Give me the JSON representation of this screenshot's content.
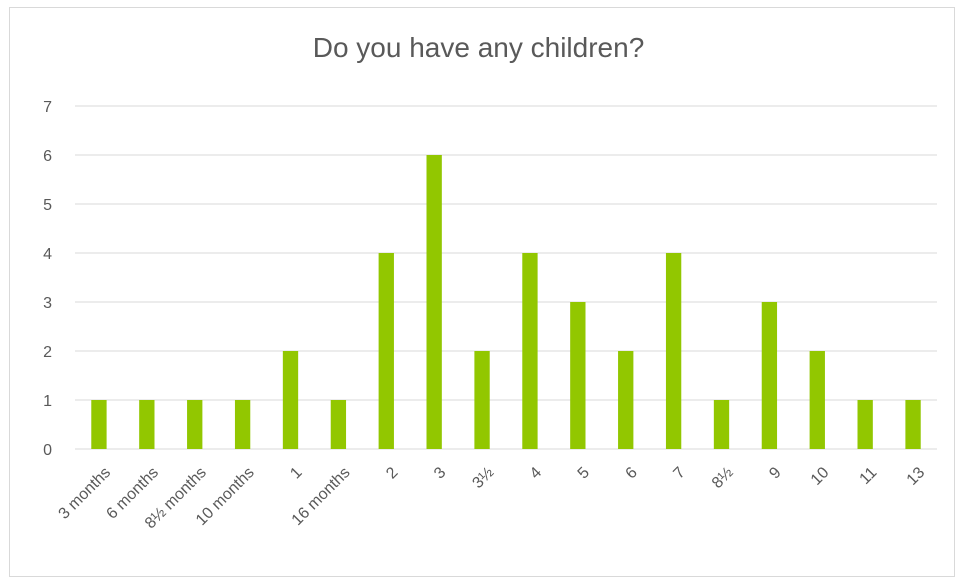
{
  "chart_data": {
    "type": "bar",
    "title": "Do you have any children?",
    "categories": [
      "3 months",
      "6 months",
      "8½ months",
      "10 months",
      "1",
      "16 months",
      "2",
      "3",
      "3½",
      "4",
      "5",
      "6",
      "7",
      "8½",
      "9",
      "10",
      "11",
      "13"
    ],
    "values": [
      1,
      1,
      1,
      1,
      2,
      1,
      4,
      6,
      2,
      4,
      3,
      2,
      4,
      1,
      3,
      2,
      1,
      1
    ],
    "xlabel": "",
    "ylabel": "",
    "ylim": [
      0,
      7
    ],
    "yticks": [
      0,
      1,
      2,
      3,
      4,
      5,
      6,
      7
    ],
    "grid": true,
    "bar_color": "#92c700",
    "grid_color": "#d9d9d9"
  }
}
